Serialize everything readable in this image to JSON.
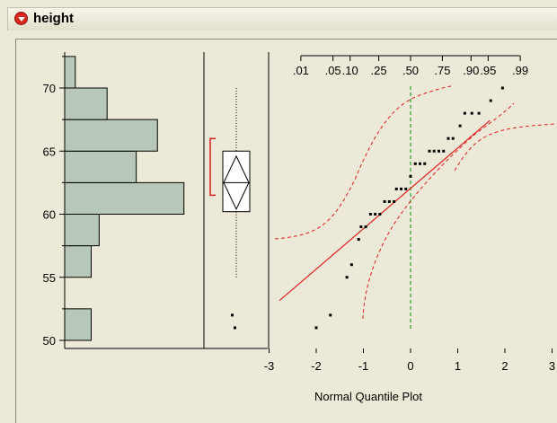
{
  "header": {
    "title": "height"
  },
  "chart_data": [
    {
      "type": "bar",
      "orientation": "horizontal",
      "bin_edges": [
        50,
        52.5,
        55,
        57.5,
        60,
        62.5,
        65,
        67.5,
        70,
        72.5
      ],
      "values": [
        1,
        0,
        1,
        1.3,
        4.5,
        2.7,
        3.5,
        1.6,
        0.4
      ],
      "ylim": [
        49.5,
        73.5
      ],
      "yticks": [
        "50",
        "55",
        "60",
        "65",
        "70"
      ],
      "bar_color": "#b8c8b8"
    },
    {
      "type": "box",
      "median": 62.5,
      "q1": 60.2,
      "q3": 65,
      "whisker_low": 55,
      "whisker_high": 70,
      "mean": 62.5,
      "mean_ci": [
        60.4,
        64.6
      ],
      "shortest_half": [
        61.5,
        66
      ],
      "outliers": [
        52,
        51
      ]
    },
    {
      "type": "scatter",
      "xlabel": "Normal Quantile Plot",
      "xlim": [
        -3,
        3
      ],
      "xticks": [
        "-3",
        "-2",
        "-1",
        "0",
        "1",
        "2",
        "3"
      ],
      "top_ticks": [
        ".01",
        ".05",
        ".10",
        ".25",
        ".50",
        ".75",
        ".90",
        ".95",
        ".99"
      ],
      "points": [
        [
          -2,
          51
        ],
        [
          -1.7,
          52
        ],
        [
          -1.35,
          55
        ],
        [
          -1.25,
          56
        ],
        [
          -1.1,
          58
        ],
        [
          -1.05,
          59
        ],
        [
          -0.95,
          59
        ],
        [
          -0.85,
          60
        ],
        [
          -0.75,
          60
        ],
        [
          -0.65,
          60
        ],
        [
          -0.55,
          61
        ],
        [
          -0.45,
          61
        ],
        [
          -0.35,
          61
        ],
        [
          -0.3,
          62
        ],
        [
          -0.2,
          62
        ],
        [
          -0.1,
          62
        ],
        [
          0,
          63
        ],
        [
          0.1,
          64
        ],
        [
          0.2,
          64
        ],
        [
          0.3,
          64
        ],
        [
          0.4,
          65
        ],
        [
          0.5,
          65
        ],
        [
          0.6,
          65
        ],
        [
          0.7,
          65
        ],
        [
          0.8,
          66
        ],
        [
          0.9,
          66
        ],
        [
          1.05,
          67
        ],
        [
          1.15,
          68
        ],
        [
          1.3,
          68
        ],
        [
          1.45,
          68
        ],
        [
          1.7,
          69
        ],
        [
          1.95,
          70
        ]
      ],
      "fit_line": {
        "slope": 3.2,
        "intercept": 62.05,
        "color": "#e02020"
      },
      "confidence_color": "#e02020",
      "median_line_color": "#2aa02a"
    }
  ]
}
